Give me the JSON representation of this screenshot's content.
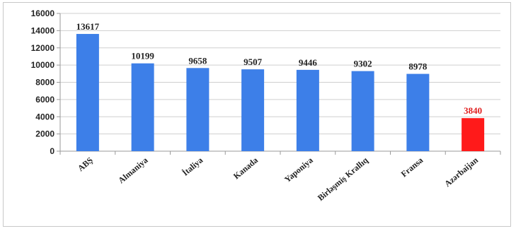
{
  "chart_data": {
    "type": "bar",
    "categories": [
      "ABŞ",
      "Almaniya",
      "İtaliya",
      "Kanada",
      "Yaponiya",
      "Birləşmiş Krallıq",
      "Fransa",
      "Azərbaijan"
    ],
    "values": [
      13617,
      10199,
      9658,
      9507,
      9446,
      9302,
      8978,
      3840
    ],
    "data_labels": [
      "13617",
      "10199",
      "9658",
      "9507",
      "9446",
      "9302",
      "8978",
      "3840"
    ],
    "y_ticks": [
      "0",
      "2000",
      "4000",
      "6000",
      "8000",
      "10000",
      "12000",
      "14000",
      "16000"
    ],
    "ylim": [
      0,
      16000
    ],
    "grid": true,
    "legend": "none",
    "colors": {
      "bar": "#3d7fe8",
      "highlight_bar": "#ff1a1a",
      "label": "#222222",
      "highlight_label": "#e02020",
      "grid": "#cfcfcf"
    },
    "highlight_index": 7
  }
}
